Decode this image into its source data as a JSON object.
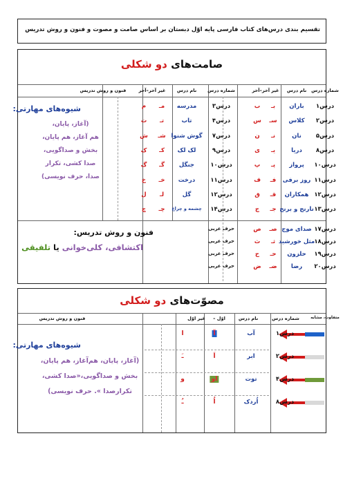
{
  "page_title": "تقسیم بندی درس‌های کتاب فارسی پایه اوّل دبستان بر اساس صامت و مصوت و فنون و روش تدریس",
  "consonants": {
    "title_part1": "صامت‌های",
    "title_part2": "دو شکلی",
    "headers": [
      "شماره درس",
      "نام درس",
      "غیر آخر–آخر",
      "شماره درس",
      "نام درس",
      "غیر آخر–آخر",
      "فنون و روش تدریس"
    ],
    "right_rows": [
      {
        "num": "درس۱",
        "name": "باران",
        "a": "بـ",
        "b": "ب"
      },
      {
        "num": "درس۲",
        "name": "کلاس",
        "a": "سـ",
        "b": "س"
      },
      {
        "num": "درس۵",
        "name": "نان",
        "a": "نـ",
        "b": "ن"
      },
      {
        "num": "درس۸",
        "name": "دریا",
        "a": "یـ",
        "b": "ی"
      },
      {
        "num": "درس۱۰",
        "name": "پرواز",
        "a": "پـ",
        "b": "پ"
      },
      {
        "num": "درس۱۱",
        "name": "روز برفی",
        "a": "فـ",
        "b": "ف"
      },
      {
        "num": "درس۱۲",
        "name": "همکاران",
        "a": "قـ",
        "b": "ق"
      },
      {
        "num": "درس۱۳",
        "name": "نارنج و برنج",
        "a": "جـ",
        "b": "ج"
      }
    ],
    "left_rows": [
      {
        "num": "درس۳",
        "name": "مدرسه",
        "a": "مـ",
        "b": "م"
      },
      {
        "num": "درس۴",
        "name": "تاب",
        "a": "تـ",
        "b": "ت"
      },
      {
        "num": "درس۷",
        "name": "گوش شنوا",
        "a": "شـ",
        "b": "ش"
      },
      {
        "num": "درس۹",
        "name": "لک لک",
        "a": "کـ",
        "b": "ک"
      },
      {
        "num": "درس۱۰",
        "name": "جنگل",
        "a": "گـ",
        "b": "گ"
      },
      {
        "num": "درس۱۱",
        "name": "درخت",
        "a": "خـ",
        "b": "خ"
      },
      {
        "num": "درس۱۲",
        "name": "گل",
        "a": "لـ",
        "b": "ل"
      },
      {
        "num": "درس۱۴",
        "name": "چشمه و چراغ",
        "a": "چـ",
        "b": "چ"
      }
    ],
    "skills_title": "شیوه‌های مهارتی:",
    "skills_lines": [
      "(آغاز، پایان،",
      "هم آغاز، هم پایان،",
      "بخش و صداگویی،",
      "صدا کشی، تکرار",
      "صدا، حرف نویسی)"
    ],
    "bottom_right_rows": [
      {
        "num": "درس۱۷",
        "name": "صدای موج",
        "a": "صـ",
        "b": "ص"
      },
      {
        "num": "درس۱۸",
        "name": "مثل خورشید",
        "a": "ثـ",
        "b": "ث"
      },
      {
        "num": "درس۱۹",
        "name": "حلزون",
        "a": "حـ",
        "b": "ح"
      },
      {
        "num": "درس۲۰",
        "name": "رضا",
        "a": "ضـ",
        "b": "ض"
      }
    ],
    "arabic_label": "حرف عربی",
    "method_title": "فنون و روش تدریس:",
    "method_part1": "اکتشافی، کلی‌خوانی",
    "method_part2": "یا",
    "method_part3": "تلفیقی"
  },
  "vowels": {
    "title_part1": "مصوّت‌های",
    "title_part2": "دو شکلی",
    "headers": [
      "متفاوت، مشابه",
      "شماره درس",
      "نام درس",
      "اوّل –",
      "غیر اوّل",
      "فنون و روش تدریس"
    ],
    "rows": [
      {
        "num": "درس۱",
        "name": "آب",
        "first": "آ",
        "other": "ا",
        "bar_color": "#1e62c9"
      },
      {
        "num": "درس۲",
        "name": "ابر",
        "first": "اَ",
        "other": "ـَ",
        "bar_color": "#d9d9d9"
      },
      {
        "num": "درس۴",
        "name": "توت",
        "first": "او",
        "other": "و",
        "bar_color": "#6f9a3a"
      },
      {
        "num": "درس۸",
        "name": "اُردک",
        "first": "اُ",
        "other": "ـُ",
        "bar_color": "#d9d9d9"
      }
    ],
    "skills_title": "شیوه‌های مهارتی:",
    "skills_lines": [
      "(آغاز، پایان، هم‌آغاز، هم پایان،",
      "بخش و صداگویی،«صدا کشی،",
      "تکرارصدا ». حرف نویسی)"
    ]
  },
  "colors": {
    "blue": "#1f3f9a",
    "red": "#d21b1b",
    "purple": "#8b5aa8",
    "green": "#4e8f1f"
  }
}
